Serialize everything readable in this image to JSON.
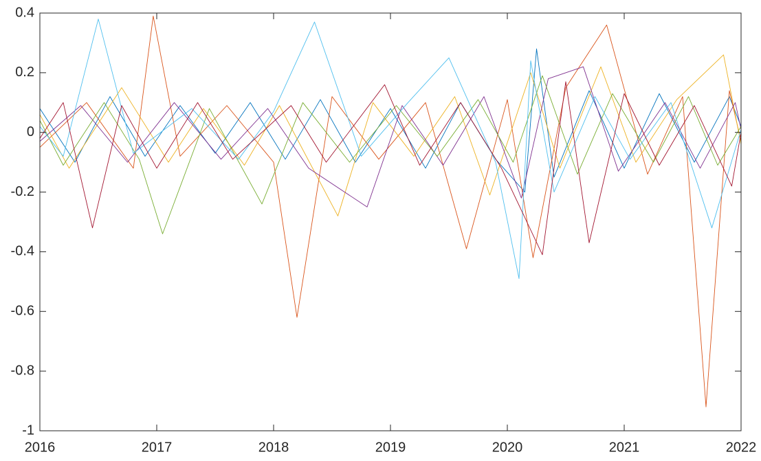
{
  "chart_data": {
    "type": "line",
    "xlim": [
      2016,
      2022
    ],
    "xticks": [
      2016,
      2017,
      2018,
      2019,
      2020,
      2021,
      2022
    ],
    "ylim": [
      -1,
      0.4
    ],
    "yticks": [
      -1,
      -0.8,
      -0.6,
      -0.4,
      -0.2,
      0,
      0.2,
      0.4
    ],
    "series": [
      {
        "color": "#0072BD",
        "x": [
          2016,
          2016.3,
          2016.6,
          2016.9,
          2017.2,
          2017.5,
          2017.8,
          2018.1,
          2018.4,
          2018.7,
          2019.0,
          2019.3,
          2019.6,
          2019.9,
          2020.15,
          2020.25,
          2020.4,
          2020.7,
          2021.0,
          2021.3,
          2021.6,
          2021.9,
          2022
        ],
        "values": [
          0.08,
          -0.1,
          0.12,
          -0.08,
          0.09,
          -0.07,
          0.1,
          -0.09,
          0.11,
          -0.1,
          0.08,
          -0.12,
          0.1,
          -0.09,
          -0.2,
          0.28,
          -0.15,
          0.14,
          -0.12,
          0.13,
          -0.1,
          0.12,
          0.02
        ]
      },
      {
        "color": "#D95319",
        "x": [
          2016,
          2016.4,
          2016.8,
          2016.97,
          2017.2,
          2017.6,
          2018.0,
          2018.2,
          2018.5,
          2018.9,
          2019.3,
          2019.65,
          2020.0,
          2020.22,
          2020.5,
          2020.85,
          2021.2,
          2021.5,
          2021.7,
          2021.9,
          2022
        ],
        "values": [
          -0.05,
          0.1,
          -0.12,
          0.39,
          -0.08,
          0.09,
          -0.1,
          -0.62,
          0.12,
          -0.09,
          0.1,
          -0.39,
          0.11,
          -0.42,
          0.15,
          0.36,
          -0.14,
          0.12,
          -0.92,
          0.14,
          -0.03
        ]
      },
      {
        "color": "#EDB120",
        "x": [
          2016,
          2016.25,
          2016.7,
          2017.1,
          2017.4,
          2017.75,
          2018.05,
          2018.55,
          2018.85,
          2019.2,
          2019.55,
          2019.85,
          2020.2,
          2020.45,
          2020.8,
          2021.1,
          2021.45,
          2021.85,
          2022
        ],
        "values": [
          0.06,
          -0.12,
          0.15,
          -0.1,
          0.08,
          -0.11,
          0.09,
          -0.28,
          0.1,
          -0.08,
          0.12,
          -0.21,
          0.2,
          -0.12,
          0.22,
          -0.1,
          0.11,
          0.26,
          -0.04
        ]
      },
      {
        "color": "#7E2F8E",
        "x": [
          2016,
          2016.35,
          2016.75,
          2017.15,
          2017.55,
          2017.95,
          2018.3,
          2018.8,
          2019.1,
          2019.45,
          2019.8,
          2020.12,
          2020.35,
          2020.65,
          2020.95,
          2021.35,
          2021.65,
          2021.95,
          2022
        ],
        "values": [
          -0.03,
          0.09,
          -0.1,
          0.1,
          -0.09,
          0.08,
          -0.12,
          -0.25,
          0.09,
          -0.11,
          0.12,
          -0.22,
          0.18,
          0.22,
          -0.13,
          0.1,
          -0.12,
          0.1,
          0.01
        ]
      },
      {
        "color": "#77AC30",
        "x": [
          2016,
          2016.2,
          2016.55,
          2016.85,
          2017.05,
          2017.45,
          2017.9,
          2018.25,
          2018.65,
          2019.05,
          2019.4,
          2019.75,
          2020.05,
          2020.3,
          2020.6,
          2020.9,
          2021.25,
          2021.55,
          2021.8,
          2022
        ],
        "values": [
          0.04,
          -0.11,
          0.1,
          -0.09,
          -0.34,
          0.08,
          -0.24,
          0.1,
          -0.1,
          0.09,
          -0.08,
          0.11,
          -0.1,
          0.19,
          -0.14,
          0.13,
          -0.1,
          0.12,
          -0.11,
          0.02
        ]
      },
      {
        "color": "#4DBEEE",
        "x": [
          2016,
          2016.2,
          2016.5,
          2016.8,
          2017.3,
          2017.7,
          2018.0,
          2018.35,
          2018.75,
          2019.15,
          2019.5,
          2019.9,
          2020.1,
          2020.2,
          2020.4,
          2020.75,
          2021.05,
          2021.4,
          2021.75,
          2022
        ],
        "values": [
          0.02,
          -0.08,
          0.38,
          -0.07,
          0.08,
          -0.09,
          0.07,
          0.37,
          -0.08,
          0.1,
          0.25,
          -0.1,
          -0.49,
          0.24,
          -0.2,
          0.12,
          -0.09,
          0.1,
          -0.32,
          0.01
        ]
      },
      {
        "color": "#A2142F",
        "x": [
          2016,
          2016.2,
          2016.45,
          2016.7,
          2017.0,
          2017.35,
          2017.65,
          2018.15,
          2018.45,
          2018.95,
          2019.25,
          2019.6,
          2019.95,
          2020.3,
          2020.5,
          2020.7,
          2021.0,
          2021.3,
          2021.6,
          2021.92,
          2022
        ],
        "values": [
          -0.02,
          0.1,
          -0.32,
          0.09,
          -0.12,
          0.1,
          -0.09,
          0.09,
          -0.1,
          0.16,
          -0.11,
          0.1,
          -0.12,
          -0.41,
          0.17,
          -0.37,
          0.13,
          -0.11,
          0.09,
          -0.18,
          0.0
        ]
      }
    ]
  }
}
